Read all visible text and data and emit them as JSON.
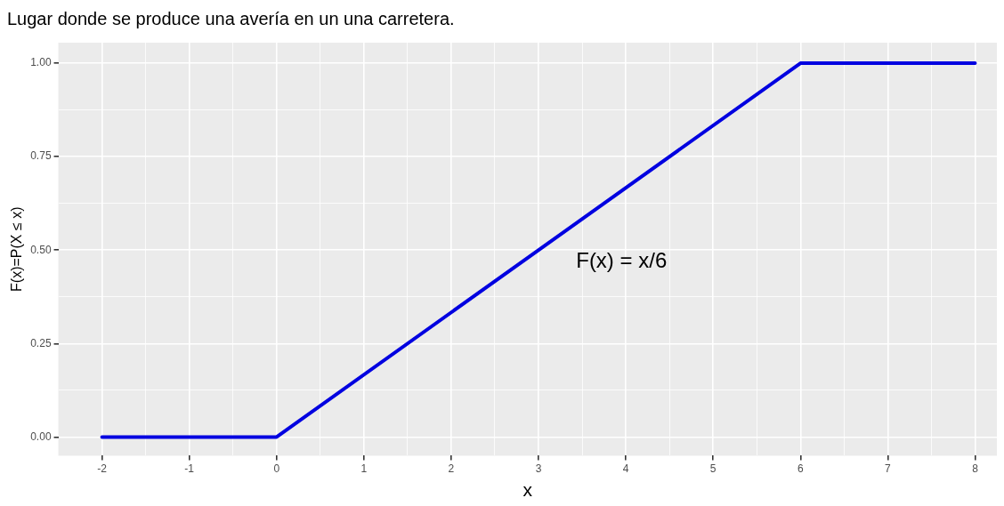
{
  "chart_data": {
    "type": "line",
    "title": "Lugar donde se produce una avería en un una carretera.",
    "xlabel": "x",
    "ylabel": "F(x)=P(X ≤ x)",
    "x": [
      -2,
      0,
      6,
      8
    ],
    "series": [
      {
        "color": "#0000e0",
        "values": [
          0,
          0,
          1,
          1
        ]
      }
    ],
    "xlim": [
      -2.5,
      8.25
    ],
    "ylim": [
      -0.05,
      1.055
    ],
    "xticks": [
      -2,
      {
        "value": -1.5,
        "label": null
      },
      -1,
      {
        "value": -0.5,
        "label": null
      },
      0,
      {
        "value": 0.5,
        "label": null
      },
      1,
      {
        "value": 1.5,
        "label": null
      },
      2,
      {
        "value": 2.5,
        "label": null
      },
      3,
      {
        "value": 3.5,
        "label": null
      },
      4,
      {
        "value": 4.5,
        "label": null
      },
      5,
      {
        "value": 5.5,
        "label": null
      },
      6,
      {
        "value": 6.5,
        "label": null
      },
      7,
      {
        "value": 7.5,
        "label": null
      },
      8
    ],
    "yticks": [
      {
        "value": 0,
        "label": "0.00"
      },
      {
        "value": 0.125,
        "label": null
      },
      {
        "value": 0.25,
        "label": "0.25"
      },
      {
        "value": 0.375,
        "label": null
      },
      {
        "value": 0.5,
        "label": "0.50"
      },
      {
        "value": 0.625,
        "label": null
      },
      {
        "value": 0.75,
        "label": "0.75"
      },
      {
        "value": 0.875,
        "label": null
      },
      {
        "value": 1,
        "label": "1.00"
      }
    ],
    "grid": true,
    "legend": false,
    "marker": "none",
    "line_style": "solid",
    "annotations": [
      "F(x) = x/6"
    ]
  }
}
